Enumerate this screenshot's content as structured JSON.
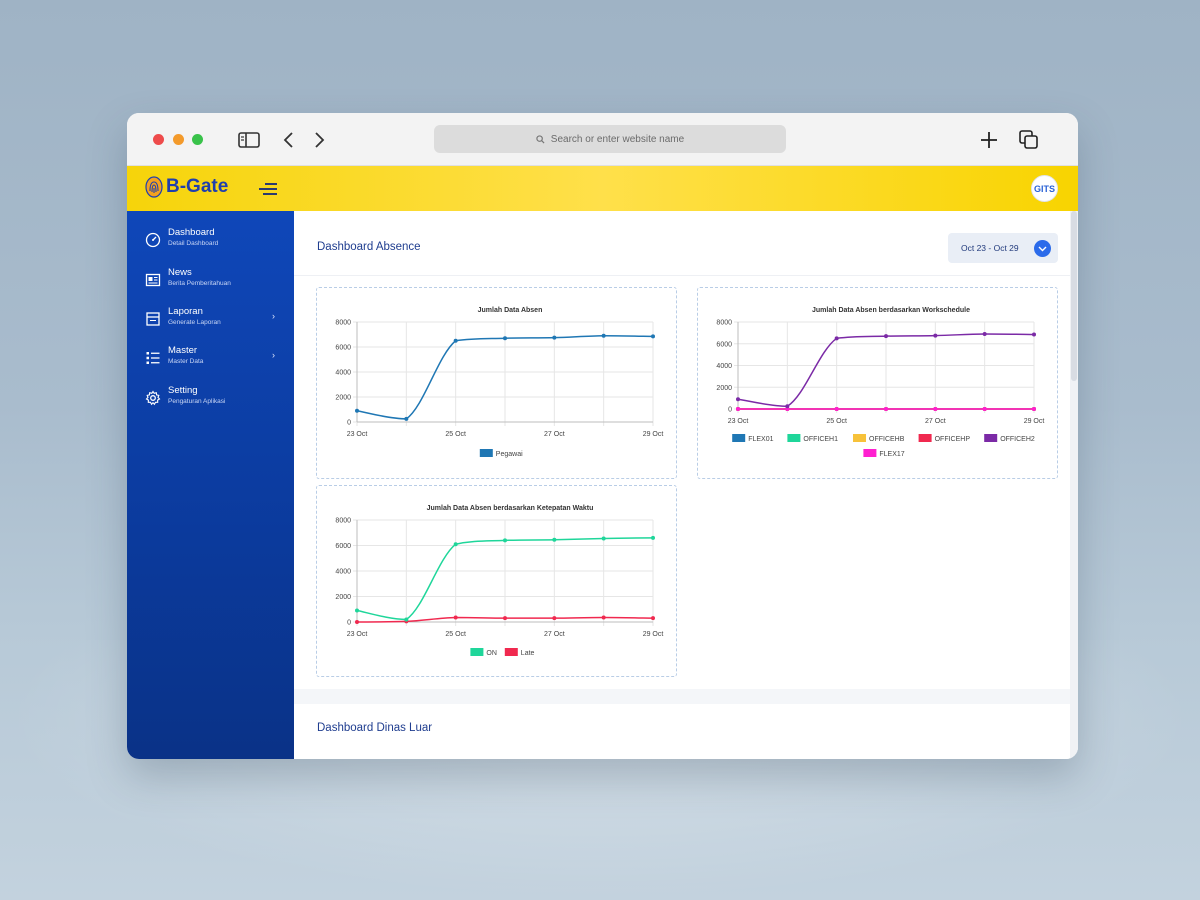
{
  "browser": {
    "address_placeholder": "Search or enter website name"
  },
  "header": {
    "logo_text": "B-Gate",
    "avatar_text": "GITS"
  },
  "sidebar": {
    "items": [
      {
        "title": "Dashboard",
        "subtitle": "Detail Dashboard",
        "icon": "dashboard-icon",
        "has_chevron": false
      },
      {
        "title": "News",
        "subtitle": "Berita Pemberitahuan",
        "icon": "news-icon",
        "has_chevron": false
      },
      {
        "title": "Laporan",
        "subtitle": "Generate Laporan",
        "icon": "report-icon",
        "has_chevron": true
      },
      {
        "title": "Master",
        "subtitle": "Master Data",
        "icon": "list-icon",
        "has_chevron": true
      },
      {
        "title": "Setting",
        "subtitle": "Pengaturan Aplikasi",
        "icon": "gear-icon",
        "has_chevron": false
      }
    ],
    "chevron": "›"
  },
  "main": {
    "panel_title": "Dashboard Absence",
    "date_range": "Oct 23 - Oct 29",
    "panel2_title": "Dashboard Dinas Luar"
  },
  "colors": {
    "sidebar": "#0f47b9",
    "header": "#f6d40a",
    "accent": "#2b6bea"
  },
  "chart_data": [
    {
      "type": "line",
      "title": "Jumlah Data Absen",
      "x": [
        "23 Oct",
        "24 Oct",
        "25 Oct",
        "26 Oct",
        "27 Oct",
        "28 Oct",
        "29 Oct"
      ],
      "x_tick_labels": [
        "23 Oct",
        "25 Oct",
        "27 Oct",
        "29 Oct"
      ],
      "ylim": [
        0,
        8000
      ],
      "y_ticks": [
        "0",
        "2000",
        "4000",
        "6000",
        "8000"
      ],
      "grid": true,
      "legend": "bottom",
      "series": [
        {
          "name": "Pegawai",
          "color": "#1f77b4",
          "values": [
            900,
            250,
            6500,
            6700,
            6750,
            6900,
            6850
          ]
        }
      ]
    },
    {
      "type": "line",
      "title": "Jumlah Data Absen berdasarkan Workschedule",
      "x": [
        "23 Oct",
        "24 Oct",
        "25 Oct",
        "26 Oct",
        "27 Oct",
        "28 Oct",
        "29 Oct"
      ],
      "x_tick_labels": [
        "23 Oct",
        "25 Oct",
        "27 Oct",
        "29 Oct"
      ],
      "ylim": [
        0,
        8000
      ],
      "y_ticks": [
        "0",
        "2000",
        "4000",
        "6000",
        "8000"
      ],
      "grid": true,
      "legend": "bottom",
      "series": [
        {
          "name": "FLEX01",
          "color": "#1f77b4",
          "values": [
            0,
            0,
            0,
            0,
            0,
            0,
            0
          ]
        },
        {
          "name": "OFFICEH1",
          "color": "#1fd69a",
          "values": [
            0,
            0,
            0,
            0,
            0,
            0,
            0
          ]
        },
        {
          "name": "OFFICEHB",
          "color": "#f7c23a",
          "values": [
            0,
            0,
            0,
            0,
            0,
            0,
            0
          ]
        },
        {
          "name": "OFFICEHP",
          "color": "#f0294f",
          "values": [
            0,
            0,
            0,
            0,
            0,
            0,
            0
          ]
        },
        {
          "name": "OFFICEH2",
          "color": "#7b2aa6",
          "values": [
            900,
            250,
            6500,
            6700,
            6750,
            6900,
            6850
          ]
        },
        {
          "name": "FLEX17",
          "color": "#ff1fd0",
          "values": [
            0,
            0,
            0,
            0,
            0,
            0,
            0
          ]
        }
      ]
    },
    {
      "type": "line",
      "title": "Jumlah Data Absen berdasarkan Ketepatan Waktu",
      "x": [
        "23 Oct",
        "24 Oct",
        "25 Oct",
        "26 Oct",
        "27 Oct",
        "28 Oct",
        "29 Oct"
      ],
      "x_tick_labels": [
        "23 Oct",
        "25 Oct",
        "27 Oct",
        "29 Oct"
      ],
      "ylim": [
        0,
        8000
      ],
      "y_ticks": [
        "0",
        "2000",
        "4000",
        "6000",
        "8000"
      ],
      "grid": true,
      "legend": "bottom",
      "series": [
        {
          "name": "ON",
          "color": "#1fd69a",
          "values": [
            900,
            200,
            6100,
            6400,
            6450,
            6550,
            6600
          ]
        },
        {
          "name": "Late",
          "color": "#f0294f",
          "values": [
            0,
            50,
            350,
            300,
            300,
            350,
            300
          ]
        }
      ]
    }
  ]
}
